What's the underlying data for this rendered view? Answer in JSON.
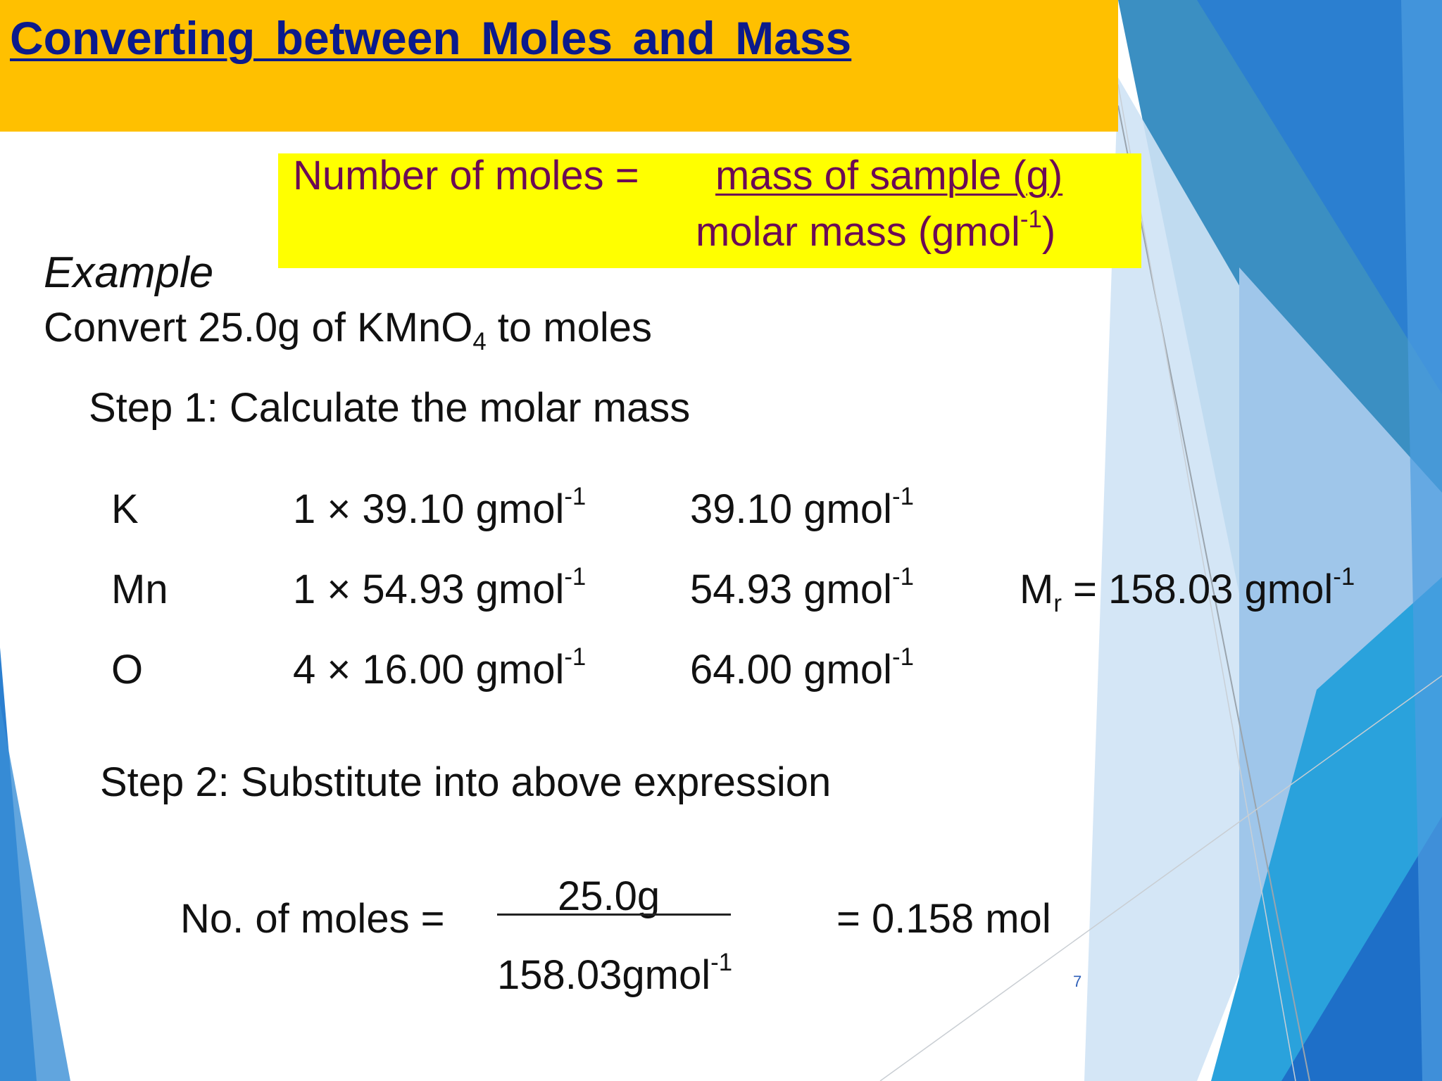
{
  "slide": {
    "title": "Converting  between    Moles and Mass",
    "page_number": "7",
    "colors": {
      "banner": "#ffc000",
      "title_text": "#0b1a8c",
      "formula_box": "#ffff00",
      "formula_text": "#6b0a55",
      "accent_blue": "#2b7fd0"
    }
  },
  "formula": {
    "lhs": "Number of moles =",
    "numerator": "mass of sample (g)",
    "denominator_base": "molar mass (gmol",
    "denominator_exp": "-1",
    "denominator_close": ")"
  },
  "example": {
    "heading": "Example",
    "question_prefix": "Convert 25.0g of KMnO",
    "question_sub": "4",
    "question_suffix": " to moles"
  },
  "step1": {
    "label": "Step 1: Calculate the molar mass",
    "unit_base": "gmol",
    "unit_exp": "-1",
    "rows": [
      {
        "element": "K",
        "calc": "1 × 39.10 ",
        "value": "39.10 "
      },
      {
        "element": "Mn",
        "calc": "1 × 54.93 ",
        "value": "54.93 "
      },
      {
        "element": "O",
        "calc": "4 × 16.00 ",
        "value": "64.00 "
      }
    ],
    "mr_symbol": "M",
    "mr_sub": "r",
    "mr_value": " = 158.03 gmol",
    "mr_exp": "-1"
  },
  "step2": {
    "label": "Step 2: Substitute into above expression",
    "lhs": "No. of moles =",
    "numerator": "25.0g",
    "denominator_base": "158.03gmol",
    "denominator_exp": "-1",
    "result": "= 0.158 mol"
  }
}
